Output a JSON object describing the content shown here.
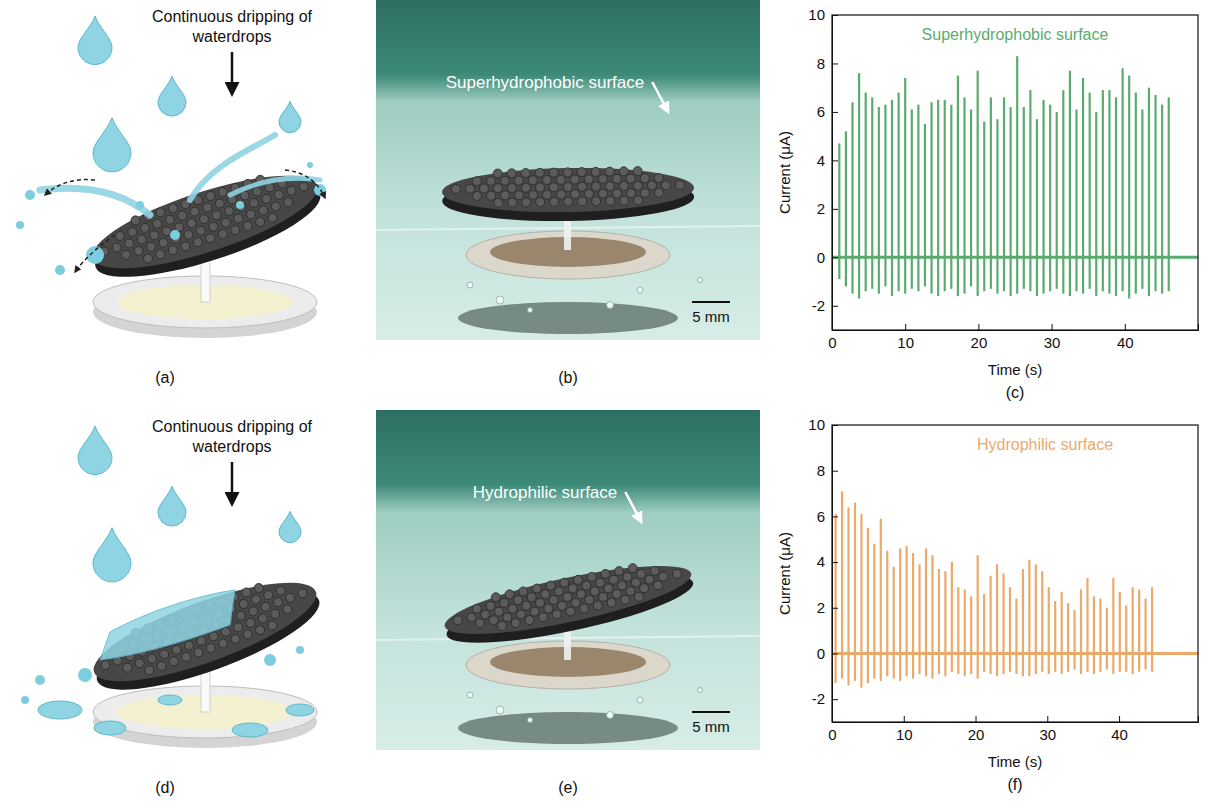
{
  "figure": {
    "schematics": [
      {
        "label": "(a)",
        "caption": "Continuous dripping of waterdrops"
      },
      {
        "label": "(d)",
        "caption": "Continuous dripping of waterdrops"
      }
    ],
    "photos": [
      {
        "label": "(b)",
        "annotation": "Superhydrophobic surface",
        "scale_bar": "5 mm"
      },
      {
        "label": "(e)",
        "annotation": "Hydrophilic surface",
        "scale_bar": "5 mm"
      }
    ],
    "chart_panels": [
      "(c)",
      "(f)"
    ]
  },
  "chart_data": [
    {
      "type": "stem",
      "title": "Superhydrophobic surface",
      "xlabel": "Time (s)",
      "ylabel": "Current (μA)",
      "xlim": [
        0,
        50
      ],
      "xticks": [
        0,
        10,
        20,
        30,
        40
      ],
      "ylim": [
        -3,
        10
      ],
      "yticks": [
        -2,
        0,
        2,
        4,
        6,
        8,
        10
      ],
      "grid": false,
      "x": [
        1.0,
        1.9,
        2.8,
        3.7,
        4.6,
        5.5,
        6.4,
        7.3,
        8.2,
        9.1,
        10.0,
        10.9,
        11.8,
        12.7,
        13.6,
        14.5,
        15.4,
        16.3,
        17.2,
        18.1,
        19.0,
        19.9,
        20.8,
        21.7,
        22.6,
        23.5,
        24.4,
        25.3,
        26.2,
        27.1,
        28.0,
        28.9,
        29.8,
        30.7,
        31.6,
        32.5,
        33.4,
        34.3,
        35.2,
        36.1,
        37.0,
        37.9,
        38.8,
        39.7,
        40.6,
        41.5,
        42.4,
        43.3,
        44.2,
        45.1,
        46.0
      ],
      "series": [
        {
          "color": "#5cab6e",
          "values": [
            4.7,
            5.2,
            6.4,
            7.6,
            6.8,
            6.6,
            6.2,
            6.3,
            6.5,
            6.8,
            7.4,
            6.1,
            6.3,
            5.5,
            6.4,
            6.5,
            6.5,
            6.3,
            7.5,
            6.6,
            6.1,
            7.7,
            5.6,
            6.6,
            5.7,
            6.6,
            6.2,
            8.3,
            6.2,
            6.9,
            5.7,
            6.5,
            6.3,
            6.0,
            6.9,
            7.7,
            6.1,
            7.4,
            6.8,
            6.0,
            6.9,
            6.9,
            6.6,
            7.8,
            7.5,
            6.8,
            6.1,
            7.0,
            6.7,
            6.3,
            6.6
          ]
        },
        {
          "color": "#5cab6e",
          "values": [
            -0.9,
            -1.2,
            -1.5,
            -1.7,
            -1.4,
            -1.3,
            -1.5,
            -1.2,
            -1.6,
            -1.4,
            -1.5,
            -1.3,
            -1.4,
            -1.2,
            -1.5,
            -1.6,
            -1.4,
            -1.3,
            -1.6,
            -1.5,
            -1.2,
            -1.6,
            -1.4,
            -1.3,
            -1.5,
            -1.4,
            -1.6,
            -1.5,
            -1.3,
            -1.4,
            -1.6,
            -1.5,
            -1.4,
            -1.3,
            -1.5,
            -1.6,
            -1.4,
            -1.5,
            -1.3,
            -1.6,
            -1.4,
            -1.5,
            -1.6,
            -1.4,
            -1.7,
            -1.5,
            -1.3,
            -1.6,
            -1.4,
            -1.5,
            -1.4
          ]
        }
      ]
    },
    {
      "type": "stem",
      "title": "Hydrophilic surface",
      "xlabel": "Time (s)",
      "ylabel": "Current (μA)",
      "xlim": [
        0,
        51
      ],
      "xticks": [
        0,
        10,
        20,
        30,
        40
      ],
      "ylim": [
        -3,
        10
      ],
      "yticks": [
        -2,
        0,
        2,
        4,
        6,
        8,
        10
      ],
      "grid": false,
      "x": [
        0.5,
        1.4,
        2.3,
        3.2,
        4.1,
        5.0,
        5.9,
        6.8,
        7.7,
        8.6,
        9.5,
        10.4,
        11.3,
        12.2,
        13.1,
        14.0,
        14.9,
        15.8,
        16.7,
        17.6,
        18.5,
        19.4,
        20.3,
        21.2,
        22.1,
        23.0,
        23.9,
        24.8,
        25.7,
        26.6,
        27.5,
        28.4,
        29.3,
        30.2,
        31.1,
        32.0,
        32.9,
        33.8,
        34.7,
        35.6,
        36.5,
        37.4,
        38.3,
        39.2,
        40.1,
        41.0,
        41.9,
        42.8,
        43.7,
        44.6
      ],
      "series": [
        {
          "color": "#eba96a",
          "values": [
            6.1,
            7.1,
            6.4,
            6.6,
            6.1,
            5.5,
            4.8,
            5.9,
            4.5,
            3.8,
            4.6,
            4.7,
            4.4,
            3.9,
            4.6,
            4.3,
            3.7,
            3.6,
            4.0,
            2.9,
            2.8,
            2.5,
            4.3,
            2.6,
            3.4,
            3.9,
            3.5,
            2.9,
            2.4,
            3.7,
            4.1,
            3.9,
            3.6,
            2.9,
            2.3,
            2.7,
            2.2,
            1.9,
            2.8,
            3.3,
            2.5,
            2.4,
            2.0,
            3.3,
            2.7,
            2.1,
            2.9,
            2.8,
            2.4,
            2.9
          ]
        },
        {
          "color": "#eba96a",
          "values": [
            -1.3,
            -1.1,
            -1.4,
            -1.2,
            -1.5,
            -1.3,
            -1.1,
            -1.2,
            -1.0,
            -1.1,
            -1.2,
            -1.0,
            -1.1,
            -0.9,
            -1.0,
            -1.1,
            -0.9,
            -1.0,
            -0.8,
            -0.9,
            -1.0,
            -0.9,
            -1.1,
            -0.8,
            -0.9,
            -1.0,
            -0.9,
            -0.8,
            -0.9,
            -1.0,
            -1.0,
            -0.9,
            -0.8,
            -0.9,
            -0.8,
            -0.9,
            -0.8,
            -0.7,
            -0.9,
            -0.8,
            -0.9,
            -0.8,
            -0.7,
            -0.9,
            -0.8,
            -0.8,
            -0.9,
            -0.8,
            -0.7,
            -0.8
          ]
        }
      ]
    }
  ]
}
